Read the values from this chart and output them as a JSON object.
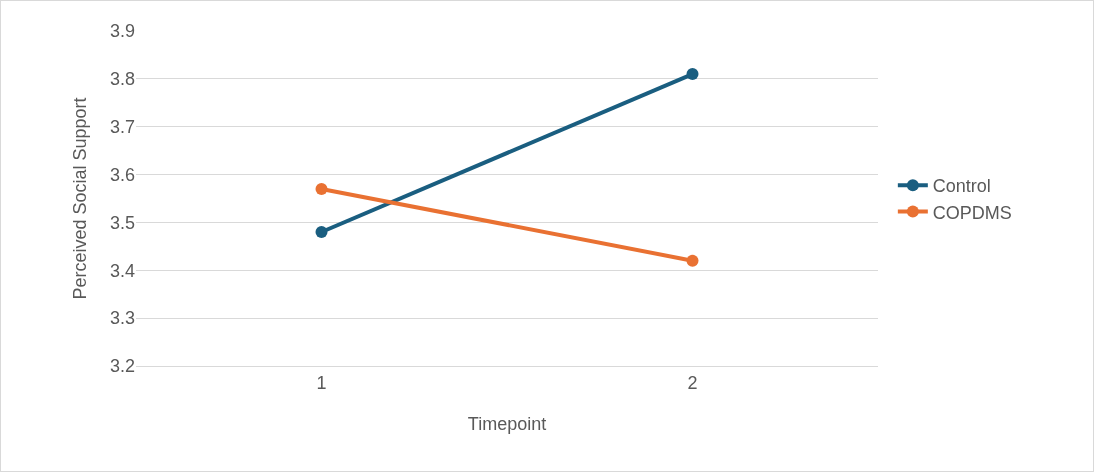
{
  "chart_data": {
    "type": "line",
    "xlabel": "Timepoint",
    "ylabel": "Perceived Social Support",
    "categories": [
      "1",
      "2"
    ],
    "series": [
      {
        "name": "Control",
        "color": "#1a5e80",
        "values": [
          3.48,
          3.81
        ]
      },
      {
        "name": "COPDMS",
        "color": "#e97132",
        "values": [
          3.57,
          3.42
        ]
      }
    ],
    "ylim": [
      3.2,
      3.9
    ],
    "yticks": [
      3.2,
      3.3,
      3.4,
      3.5,
      3.6,
      3.7,
      3.8,
      3.9
    ],
    "grid": "y",
    "legend": "right",
    "marker": "circle",
    "line_style": "solid"
  }
}
